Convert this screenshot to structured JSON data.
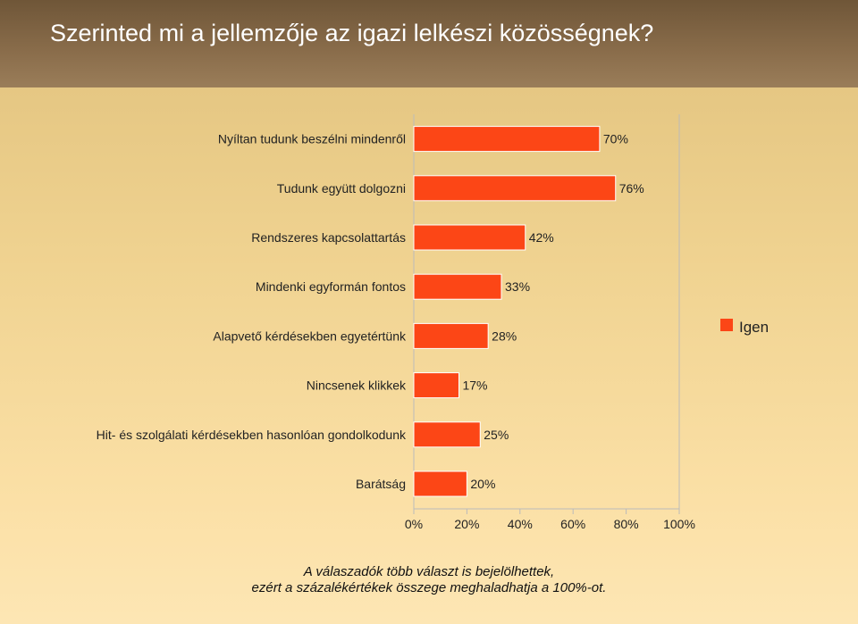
{
  "header": {
    "title": "Szerinted mi a jellemzője az igazi lelkészi közösségnek?"
  },
  "chart_data": {
    "type": "bar",
    "orientation": "horizontal",
    "categories": [
      "Nyíltan tudunk beszélni mindenről",
      "Tudunk együtt dolgozni",
      "Rendszeres kapcsolattartás",
      "Mindenki egyformán fontos",
      "Alapvető kérdésekben egyetértünk",
      "Nincsenek klikkek",
      "Hit- és szolgálati kérdésekben hasonlóan gondolkodunk",
      "Barátság"
    ],
    "series": [
      {
        "name": "Igen",
        "values": [
          70,
          76,
          42,
          33,
          28,
          17,
          25,
          20
        ],
        "labels": [
          "70%",
          "76%",
          "42%",
          "33%",
          "28%",
          "17%",
          "25%",
          "20%"
        ]
      }
    ],
    "xticks": [
      "0%",
      "20%",
      "40%",
      "60%",
      "80%",
      "100%"
    ],
    "xlim": [
      0,
      100
    ],
    "grid": false,
    "legend": "right",
    "colors": {
      "bar": "#fc4616",
      "bar_edge": "#ffffff",
      "axis": "#bbbbbb"
    }
  },
  "footnote": {
    "line1": "A válaszadók több választ is bejelölhettek,",
    "line2": "ezért a százalékértékek összege meghaladhatja a 100%-ot."
  }
}
